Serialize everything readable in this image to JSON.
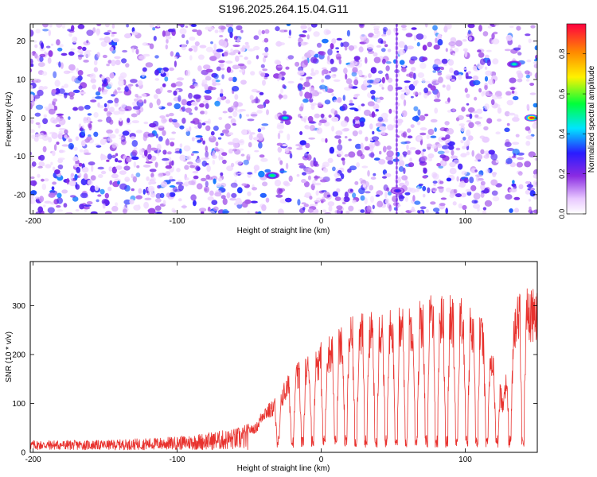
{
  "title": "S196.2025.264.15.04.G11",
  "colors": {
    "snr_line": "#e8322e",
    "background": "#ffffff",
    "axis": "#000000"
  },
  "chart_data": [
    {
      "type": "heatmap",
      "id": "spectrogram",
      "xlabel": "Height of straight line (km)",
      "ylabel": "Frequency (Hz)",
      "xlim": [
        -202,
        150
      ],
      "ylim": [
        -25,
        24.5
      ],
      "xticks": [
        -200,
        -100,
        0,
        100
      ],
      "xtick_labels": [
        "-200",
        "-100",
        "0",
        "100"
      ],
      "yticks": [
        -20,
        -10,
        0,
        10,
        20
      ],
      "ytick_labels": [
        "-20",
        "-10",
        "0",
        "10",
        "20"
      ],
      "blank_bands_km": [
        [
          -37,
          -31
        ],
        [
          -21,
          -17
        ],
        [
          48,
          51
        ],
        [
          124,
          129
        ],
        [
          139,
          143
        ]
      ],
      "peaks": [
        {
          "x": -34,
          "y": -15,
          "amplitude": 0.55
        },
        {
          "x": -25,
          "y": 0,
          "amplitude": 0.5
        },
        {
          "x": 53,
          "y": -19,
          "amplitude": 0.3
        },
        {
          "x": 134,
          "y": 14,
          "amplitude": 0.5
        },
        {
          "x": 146,
          "y": 0,
          "amplitude": 0.95
        }
      ],
      "colorbar": {
        "label": "Normalized spectral amplitude",
        "range": [
          0.0,
          0.95
        ],
        "ticks": [
          0.0,
          0.2,
          0.4,
          0.6,
          0.8
        ],
        "tick_labels": [
          "0.0",
          "0.2",
          "0.4",
          "0.6",
          "0.8"
        ]
      }
    },
    {
      "type": "line",
      "id": "snr",
      "xlabel": "Height of straight line (km)",
      "ylabel": "SNR (10 * v/v)",
      "xlim": [
        -202,
        150
      ],
      "ylim": [
        0,
        390
      ],
      "xticks": [
        -200,
        -100,
        0,
        100
      ],
      "xtick_labels": [
        "-200",
        "-100",
        "0",
        "100"
      ],
      "yticks": [
        0,
        100,
        200,
        300
      ],
      "ytick_labels": [
        "0",
        "100",
        "200",
        "300"
      ],
      "series": [
        {
          "name": "SNR",
          "envelope_x": [
            -202,
            -150,
            -120,
            -100,
            -80,
            -60,
            -45,
            -40,
            -35,
            -30,
            -20,
            -10,
            0,
            10,
            20,
            30,
            40,
            50,
            60,
            70,
            80,
            90,
            100,
            110,
            115,
            118,
            122,
            126,
            130,
            135,
            140,
            150
          ],
          "envelope_y": [
            18,
            18,
            22,
            25,
            32,
            40,
            55,
            90,
            95,
            115,
            160,
            185,
            210,
            235,
            255,
            265,
            275,
            272,
            282,
            295,
            300,
            298,
            290,
            270,
            225,
            200,
            160,
            110,
            200,
            300,
            320,
            305
          ],
          "dip_x": [
            -30,
            -20,
            -13,
            -6,
            2,
            10,
            17,
            24,
            31,
            38,
            45,
            52,
            59,
            66,
            73,
            80,
            87,
            94,
            101,
            108,
            115,
            122,
            131,
            140
          ],
          "dip_floor": 10
        }
      ]
    }
  ]
}
